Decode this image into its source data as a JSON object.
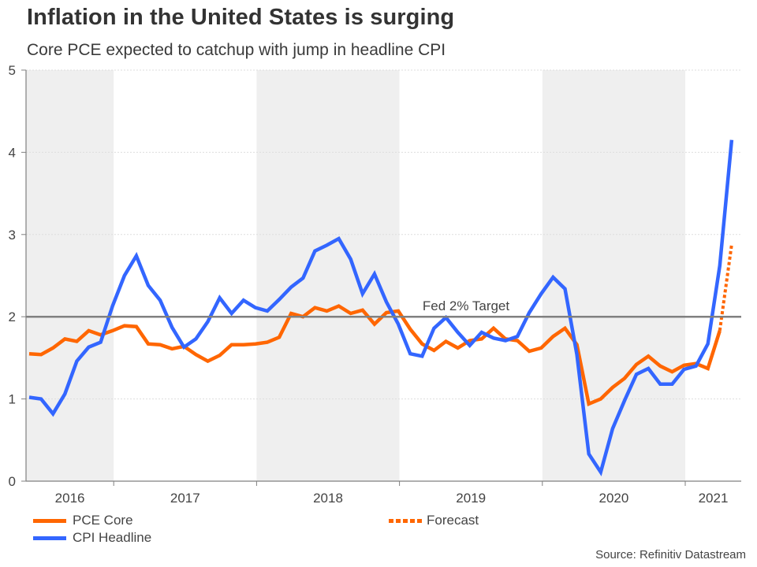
{
  "chart_data": {
    "type": "line",
    "title": "Inflation in the United States is surging",
    "subtitle": "Core PCE expected to catchup with jump in headline CPI",
    "xlabel": "",
    "ylabel": "",
    "ylim": [
      0,
      5
    ],
    "yticks": [
      0,
      1,
      2,
      3,
      4,
      5
    ],
    "grid": true,
    "x_unit": "month",
    "x_start": "2016-05",
    "x_end": "2021-04",
    "xlim_month_index": [
      -0.25,
      59.8
    ],
    "year_boundaries_month_index": [
      7,
      19,
      31,
      43,
      55
    ],
    "year_labels": [
      "2016",
      "2017",
      "2018",
      "2019",
      "2020",
      "2021"
    ],
    "shaded_years": [
      "2016",
      "2018",
      "2020"
    ],
    "x": [
      "2016-05",
      "2016-06",
      "2016-07",
      "2016-08",
      "2016-09",
      "2016-10",
      "2016-11",
      "2016-12",
      "2017-01",
      "2017-02",
      "2017-03",
      "2017-04",
      "2017-05",
      "2017-06",
      "2017-07",
      "2017-08",
      "2017-09",
      "2017-10",
      "2017-11",
      "2017-12",
      "2018-01",
      "2018-02",
      "2018-03",
      "2018-04",
      "2018-05",
      "2018-06",
      "2018-07",
      "2018-08",
      "2018-09",
      "2018-10",
      "2018-11",
      "2018-12",
      "2019-01",
      "2019-02",
      "2019-03",
      "2019-04",
      "2019-05",
      "2019-06",
      "2019-07",
      "2019-08",
      "2019-09",
      "2019-10",
      "2019-11",
      "2019-12",
      "2020-01",
      "2020-02",
      "2020-03",
      "2020-04",
      "2020-05",
      "2020-06",
      "2020-07",
      "2020-08",
      "2020-09",
      "2020-10",
      "2020-11",
      "2020-12",
      "2021-01",
      "2021-02",
      "2021-03",
      "2021-04"
    ],
    "series": [
      {
        "name": "PCE Core",
        "color": "#ff6600",
        "style": "solid",
        "values": [
          1.55,
          1.54,
          1.62,
          1.73,
          1.7,
          1.83,
          1.78,
          1.83,
          1.89,
          1.88,
          1.67,
          1.66,
          1.61,
          1.64,
          1.54,
          1.46,
          1.53,
          1.66,
          1.66,
          1.67,
          1.69,
          1.75,
          2.04,
          2.0,
          2.11,
          2.07,
          2.13,
          2.04,
          2.08,
          1.91,
          2.05,
          2.07,
          1.85,
          1.67,
          1.59,
          1.7,
          1.62,
          1.71,
          1.73,
          1.86,
          1.73,
          1.71,
          1.58,
          1.62,
          1.76,
          1.86,
          1.66,
          0.94,
          1.0,
          1.14,
          1.25,
          1.42,
          1.52,
          1.4,
          1.33,
          1.41,
          1.43,
          1.37,
          1.83,
          null
        ]
      },
      {
        "name": "CPI Headline",
        "color": "#3366ff",
        "style": "solid",
        "values": [
          1.02,
          1.0,
          0.82,
          1.06,
          1.46,
          1.63,
          1.69,
          2.13,
          2.5,
          2.74,
          2.38,
          2.2,
          1.87,
          1.63,
          1.73,
          1.94,
          2.23,
          2.04,
          2.2,
          2.11,
          2.07,
          2.21,
          2.36,
          2.47,
          2.8,
          2.87,
          2.95,
          2.7,
          2.28,
          2.52,
          2.18,
          1.91,
          1.55,
          1.52,
          1.86,
          1.99,
          1.81,
          1.65,
          1.81,
          1.74,
          1.71,
          1.76,
          2.05,
          2.28,
          2.48,
          2.34,
          1.54,
          0.33,
          0.11,
          0.64,
          0.98,
          1.3,
          1.37,
          1.18,
          1.18,
          1.36,
          1.4,
          1.67,
          2.62,
          4.15
        ]
      },
      {
        "name": "Forecast",
        "color": "#ff6600",
        "style": "dotted",
        "x": [
          "2021-03",
          "2021-04"
        ],
        "values": [
          1.83,
          2.88
        ]
      }
    ],
    "reference_line": {
      "y": 2,
      "label": "Fed 2% Target",
      "color": "#808080"
    },
    "legend": {
      "placement": "bottom-left",
      "entries": [
        {
          "label": "PCE Core",
          "color": "#ff6600",
          "style": "solid"
        },
        {
          "label": "CPI Headline",
          "color": "#3366ff",
          "style": "solid"
        },
        {
          "label": "Forecast",
          "color": "#ff6600",
          "style": "dotted"
        }
      ]
    },
    "source": "Source: Refinitiv Datastream"
  },
  "colors": {
    "shade": "#efefef",
    "axis": "#808080",
    "grid": "#dddddd",
    "text": "#333333"
  }
}
